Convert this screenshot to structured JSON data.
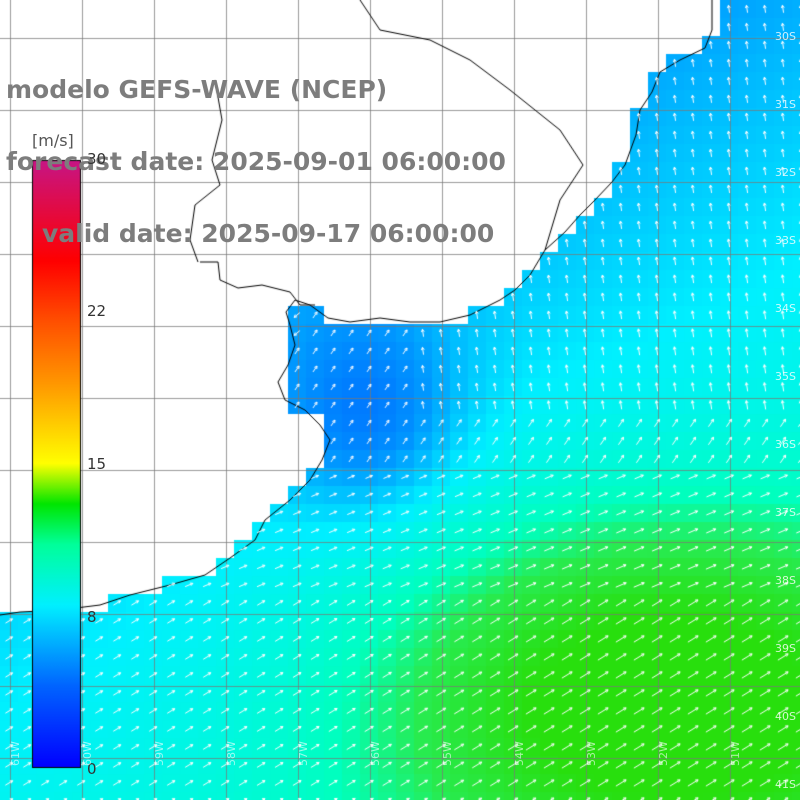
{
  "title": {
    "line1": "modelo GEFS-WAVE (NCEP)",
    "line2": "forecast date: 2025-09-01 06:00:00",
    "line3": "valid date: 2025-09-17 06:00:00"
  },
  "colorbar": {
    "unit": "[m/s]",
    "min": 0,
    "max": 30,
    "ticks": [
      "30",
      "22",
      "15",
      "8",
      "0"
    ],
    "tick_values": [
      30,
      22,
      15,
      8,
      0
    ],
    "colors": [
      "#0000ff",
      "#0078ff",
      "#00ffff",
      "#00e600",
      "#32cd00",
      "#ffff00",
      "#ff7f00",
      "#ff0000",
      "#c71585"
    ]
  },
  "map": {
    "ocean_colors": {
      "low": "#0a3cf0",
      "mid": "#1a8cff",
      "high": "#00f0ff",
      "green": "#40e830"
    },
    "land_color": "#ffffff",
    "grid_color": "#888888",
    "lat_labels": [
      "30S",
      "31S",
      "32S",
      "33S",
      "34S",
      "35S",
      "36S",
      "37S",
      "38S",
      "39S",
      "40S",
      "41S"
    ],
    "lon_labels": [
      "61W",
      "60W",
      "59W",
      "58W",
      "57W",
      "56W",
      "55W",
      "54W",
      "53W",
      "52W",
      "51W"
    ]
  }
}
